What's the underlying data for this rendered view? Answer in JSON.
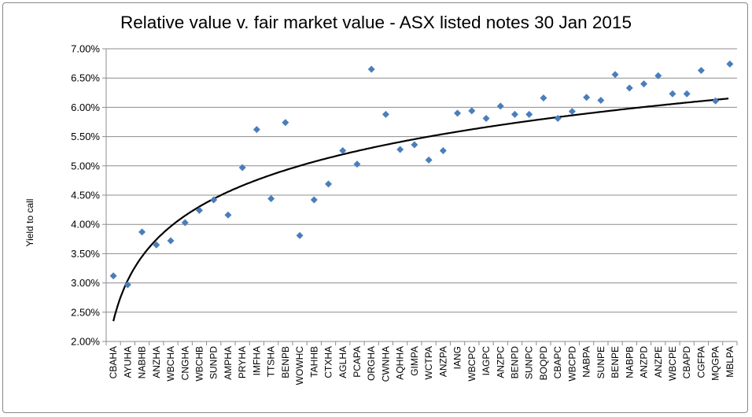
{
  "chart_data": {
    "type": "scatter",
    "title": "Relative value v. fair market value - ASX listed notes 30 Jan 2015",
    "ylabel": "Yield  to call",
    "xlabel": "",
    "ylim": [
      0.02,
      0.07
    ],
    "yticks": [
      "2.00%",
      "2.50%",
      "3.00%",
      "3.50%",
      "4.00%",
      "4.50%",
      "5.00%",
      "5.50%",
      "6.00%",
      "6.50%",
      "7.00%"
    ],
    "grid": "horizontal",
    "legend": "none",
    "categories": [
      "CBAHA",
      "AYUHA",
      "NABHB",
      "ANZHA",
      "WBCHA",
      "CNGHA",
      "WBCHB",
      "SUNPD",
      "AMPHA",
      "PRYHA",
      "IMFHA",
      "TTSHA",
      "BENPB",
      "WOWHC",
      "TAHHB",
      "CTXHA",
      "AGLHA",
      "PCAPA",
      "ORGHA",
      "CWNHA",
      "AQHHA",
      "GIMPA",
      "WCTPA",
      "ANZPA",
      "IANG",
      "WBCPC",
      "IAGPC",
      "ANZPC",
      "BENPD",
      "SUNPC",
      "BOQPD",
      "CBAPC",
      "WBCPD",
      "NABPA",
      "SUNPE",
      "BENPE",
      "NABPB",
      "ANZPD",
      "ANZPE",
      "WBCPE",
      "CBAPD",
      "CGFPA",
      "MQGPA",
      "MBLPA"
    ],
    "values": [
      0.0312,
      0.0297,
      0.0387,
      0.0365,
      0.0372,
      0.0403,
      0.0424,
      0.0442,
      0.0416,
      0.0497,
      0.0562,
      0.0444,
      0.0574,
      0.0381,
      0.0442,
      0.0469,
      0.0526,
      0.0503,
      0.0665,
      0.0588,
      0.0528,
      0.0536,
      0.051,
      0.0526,
      0.059,
      0.0594,
      0.0581,
      0.0602,
      0.0588,
      0.0588,
      0.0616,
      0.0581,
      0.0593,
      0.0617,
      0.0612,
      0.0656,
      0.0633,
      0.064,
      0.0654,
      0.0623,
      0.0623,
      0.0663,
      0.0611,
      0.0674
    ],
    "series": [
      {
        "type": "scatter",
        "marker": "diamond",
        "color": "#4a7ebb"
      },
      {
        "type": "trendline",
        "model": "logarithmic",
        "color": "#000000",
        "x": [
          1,
          2,
          3,
          5,
          8,
          12,
          20,
          30,
          44
        ],
        "values": [
          0.0238,
          0.0306,
          0.0346,
          0.0395,
          0.0441,
          0.0481,
          0.053,
          0.057,
          0.063
        ]
      }
    ]
  }
}
